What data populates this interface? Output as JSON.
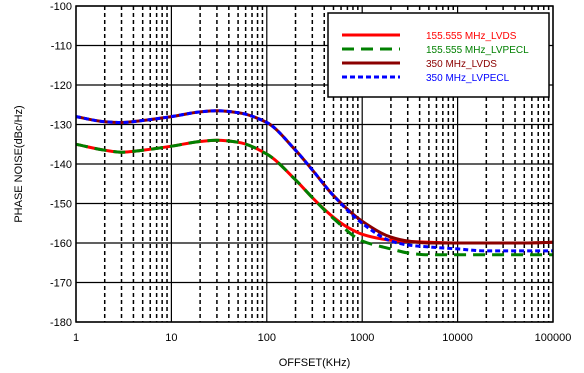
{
  "chart_data": {
    "type": "line",
    "xlabel": "OFFSET(KHz)",
    "ylabel": "PHASE NOISE(dBc/Hz)",
    "x_scale": "log",
    "xlim": [
      1,
      100000
    ],
    "ylim": [
      -180,
      -100
    ],
    "x_ticks": [
      1,
      10,
      100,
      1000,
      10000,
      100000
    ],
    "x_tick_labels": [
      "1",
      "10",
      "100",
      "1000",
      "10000",
      "100000"
    ],
    "y_ticks": [
      -180,
      -170,
      -160,
      -150,
      -140,
      -130,
      -120,
      -110,
      -100
    ],
    "y_tick_labels": [
      "-180",
      "-170",
      "-160",
      "-150",
      "-140",
      "-130",
      "-120",
      "-110",
      "-100"
    ],
    "grid": "major and minor (log), dashed minor",
    "legend_position": "top-right",
    "series": [
      {
        "name": "155.555 MHz_LVDS",
        "color": "#ff0000",
        "dash": "solid",
        "x": [
          1,
          2,
          3,
          5,
          10,
          20,
          30,
          50,
          100,
          200,
          300,
          500,
          700,
          1000,
          2000,
          3000,
          5000,
          10000,
          20000,
          50000,
          100000
        ],
        "y": [
          -135,
          -136.5,
          -137,
          -136.5,
          -135.5,
          -134.3,
          -134,
          -134.5,
          -137.5,
          -144,
          -148.5,
          -153.5,
          -156,
          -157.8,
          -159.3,
          -159.6,
          -159.8,
          -160,
          -160,
          -160,
          -159.8
        ]
      },
      {
        "name": "155.555 MHz_LVPECL",
        "color": "#008000",
        "dash": "dashed",
        "x": [
          1,
          2,
          3,
          5,
          10,
          20,
          30,
          50,
          100,
          200,
          300,
          500,
          1000,
          2000,
          3000,
          5000,
          10000,
          20000,
          50000,
          100000
        ],
        "y": [
          -135,
          -136.5,
          -137,
          -136.5,
          -135.5,
          -134.3,
          -134,
          -134.5,
          -137.5,
          -144,
          -148.5,
          -153.8,
          -159.5,
          -161.5,
          -162.5,
          -163,
          -163,
          -163,
          -163,
          -163
        ]
      },
      {
        "name": "350 MHz_LVDS",
        "color": "#8b0000",
        "dash": "solid",
        "x": [
          1,
          2,
          3,
          5,
          10,
          20,
          30,
          50,
          100,
          200,
          300,
          500,
          1000,
          2000,
          3000,
          5000,
          10000,
          20000,
          50000,
          100000
        ],
        "y": [
          -128,
          -129.3,
          -129.5,
          -129,
          -128,
          -126.8,
          -126.5,
          -127,
          -129.5,
          -136.5,
          -141.5,
          -148,
          -154.5,
          -158.5,
          -159.5,
          -160,
          -160,
          -160,
          -160,
          -159.8
        ]
      },
      {
        "name": "350 MHz_LVPECL",
        "color": "#0000ff",
        "dash": "dotted",
        "x": [
          1,
          2,
          3,
          5,
          10,
          20,
          30,
          50,
          100,
          200,
          300,
          500,
          1000,
          2000,
          3000,
          5000,
          10000,
          20000,
          50000,
          100000
        ],
        "y": [
          -128,
          -129.3,
          -129.5,
          -129,
          -128,
          -126.8,
          -126.5,
          -127,
          -129.5,
          -136.5,
          -141.5,
          -148,
          -155,
          -159.5,
          -160.5,
          -161,
          -161.5,
          -162,
          -162,
          -162
        ]
      }
    ]
  }
}
